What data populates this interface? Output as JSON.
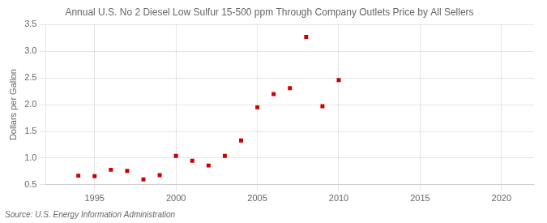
{
  "chart_data": {
    "type": "scatter",
    "title": "Annual U.S. No 2 Diesel Low Sulfur 15-500 ppm Through Company Outlets Price by All Sellers",
    "y_label": "Dollars per Gallon",
    "annotations": [
      "Source: U.S. Energy Information Administration"
    ],
    "x": [
      1994,
      1995,
      1996,
      1997,
      1998,
      1999,
      2000,
      2001,
      2002,
      2003,
      2004,
      2005,
      2006,
      2007,
      2008,
      2009,
      2010
    ],
    "values": [
      0.67,
      0.66,
      0.78,
      0.76,
      0.6,
      0.68,
      1.04,
      0.95,
      0.86,
      1.04,
      1.33,
      1.95,
      2.2,
      2.31,
      3.27,
      1.97,
      2.46
    ],
    "color": "#cc0000",
    "marker": "square",
    "xlim": [
      1992,
      2022
    ],
    "xticks": [
      1995,
      2000,
      2005,
      2010,
      2015,
      2020
    ],
    "ylim": [
      0.5,
      3.5
    ],
    "yticks": [
      0.5,
      {
        "value": 1.0,
        "label": "1.0"
      },
      1.5,
      {
        "value": 2.0,
        "label": "2.0"
      },
      2.5,
      {
        "value": 3.0,
        "label": "3.0"
      },
      3.5
    ],
    "grid": true
  }
}
